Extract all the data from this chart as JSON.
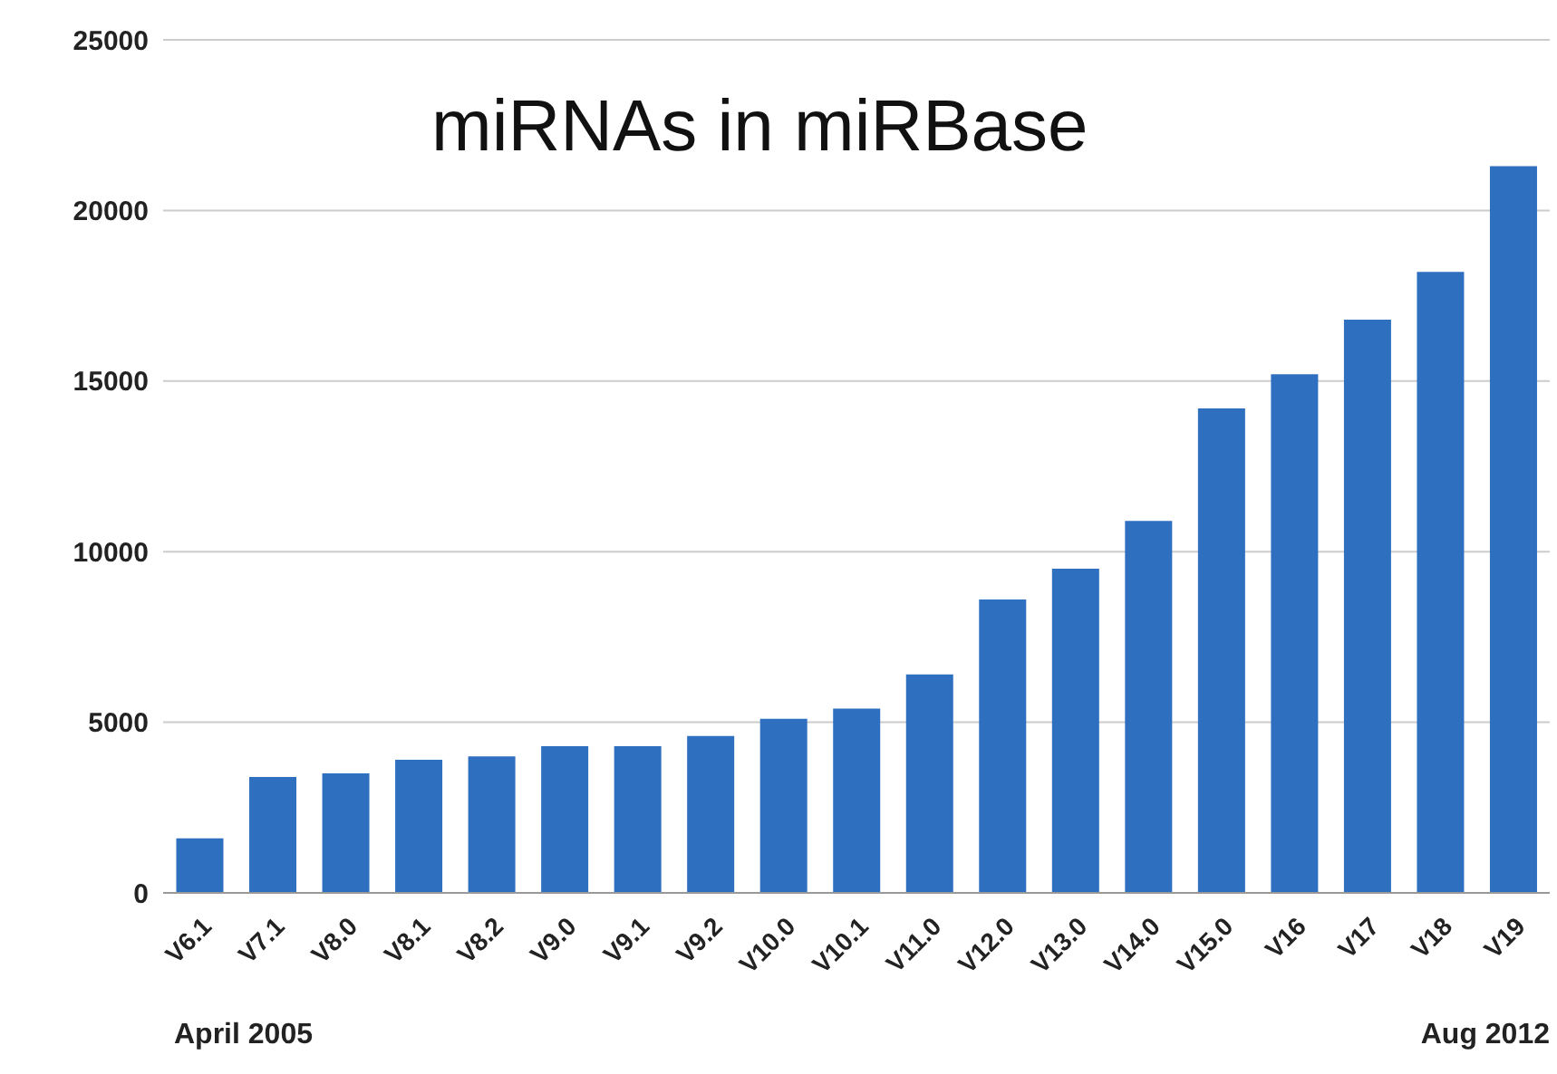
{
  "chart_data": {
    "type": "bar",
    "title": "miRNAs in miRBase",
    "categories": [
      "V6.1",
      "V7.1",
      "V8.0",
      "V8.1",
      "V8.2",
      "V9.0",
      "V9.1",
      "V9.2",
      "V10.0",
      "V10.1",
      "V11.0",
      "V12.0",
      "V13.0",
      "V14.0",
      "V15.0",
      "V16",
      "V17",
      "V18",
      "V19"
    ],
    "values": [
      1600,
      3400,
      3500,
      3900,
      4000,
      4300,
      4300,
      4600,
      5100,
      5400,
      6400,
      8600,
      9500,
      10900,
      14200,
      15200,
      16800,
      18200,
      21300
    ],
    "color": "#2f6fc0",
    "ylim": [
      0,
      25000
    ],
    "yticks": [
      0,
      5000,
      10000,
      15000,
      20000,
      25000
    ],
    "grid": "y",
    "annotations": [
      "April 2005",
      "Aug 2012"
    ]
  }
}
